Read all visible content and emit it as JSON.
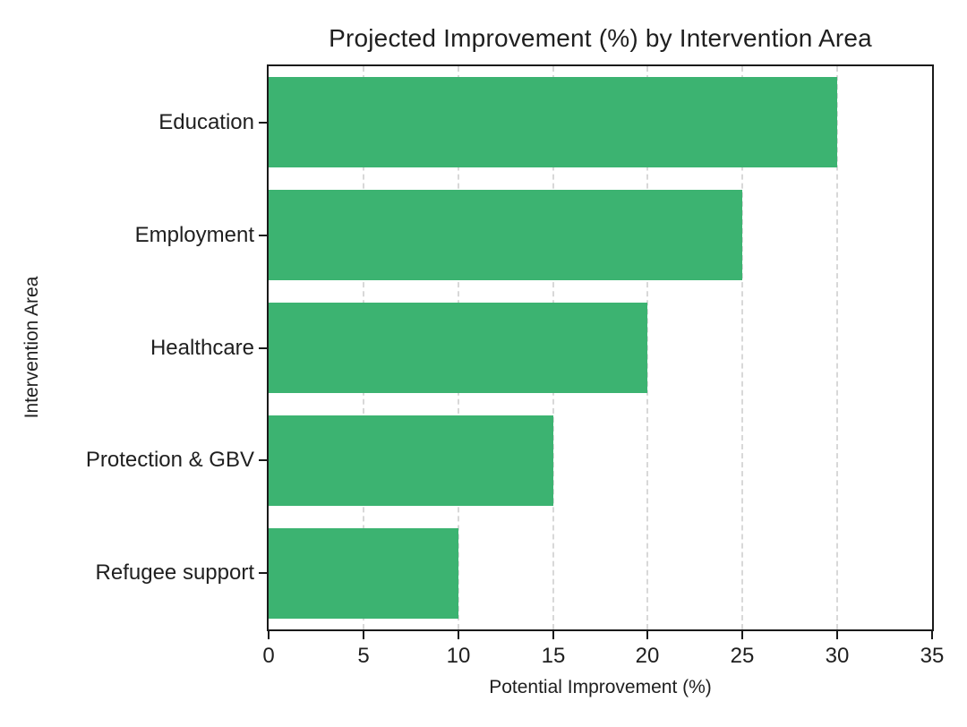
{
  "chart_data": {
    "type": "bar",
    "orientation": "horizontal",
    "title": "Projected Improvement (%) by Intervention Area",
    "xlabel": "Potential Improvement (%)",
    "ylabel": "Intervention Area",
    "categories": [
      "Education",
      "Employment",
      "Healthcare",
      "Protection & GBV",
      "Refugee support"
    ],
    "values": [
      30,
      25,
      20,
      15,
      10
    ],
    "xticks": [
      0,
      5,
      10,
      15,
      20,
      25,
      30,
      35
    ],
    "xlim": [
      0,
      35
    ],
    "bar_color": "#3cb371",
    "gridline_color": "#d8d8d8",
    "spine_color": "#1a1a1a",
    "grid": "vertical-dashed",
    "legend": "none",
    "background": "#ffffff"
  }
}
